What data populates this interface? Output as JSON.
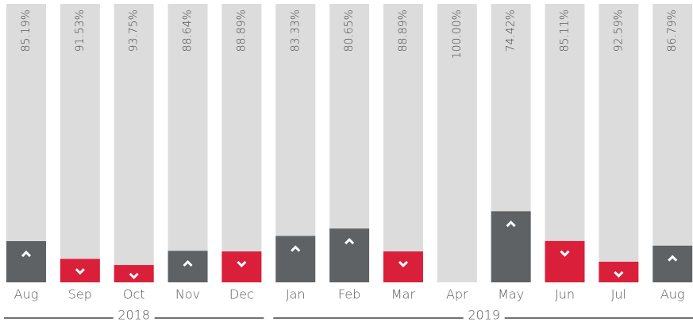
{
  "chart_data": {
    "type": "stacked_bar_100",
    "categories": [
      "Aug",
      "Sep",
      "Oct",
      "Nov",
      "Dec",
      "Jan",
      "Feb",
      "Mar",
      "Apr",
      "May",
      "Jun",
      "Jul",
      "Aug"
    ],
    "x_groups": [
      "2018",
      "2018",
      "2018",
      "2018",
      "2018",
      "2019",
      "2019",
      "2019",
      "2019",
      "2019",
      "2019",
      "2019",
      "2019"
    ],
    "ylim": [
      0,
      100
    ],
    "trend_colors": {
      "up": "#5f6265",
      "down": "#d91f3a"
    },
    "series": [
      {
        "trend": [
          "up",
          "down",
          "down",
          "up",
          "down",
          "up",
          "up",
          "down",
          "down",
          "up",
          "down",
          "down",
          "up"
        ],
        "values": [
          14.81,
          8.47,
          6.25,
          11.36,
          11.11,
          16.67,
          19.35,
          11.11,
          0,
          25.58,
          14.89,
          7.41,
          13.21
        ],
        "value_labels": [
          "14.81%",
          "8.47%",
          "6.25%",
          "11.36%",
          "11.11%",
          "16.67%",
          "19.35%",
          "11.11%",
          "0.00%",
          "25.58%",
          "14.89%",
          "7.41%",
          "13.21%"
        ]
      },
      {
        "color": "#dcdcdc",
        "values": [
          85.19,
          91.53,
          93.75,
          88.64,
          88.89,
          83.33,
          80.65,
          88.89,
          100,
          74.42,
          85.11,
          92.59,
          86.79
        ],
        "value_labels": [
          "85.19%",
          "91.53%",
          "93.75%",
          "88.64%",
          "88.89%",
          "83.33%",
          "80.65%",
          "88.89%",
          "100.00%",
          "74.42%",
          "85.11%",
          "92.59%",
          "86.79%"
        ]
      }
    ]
  }
}
